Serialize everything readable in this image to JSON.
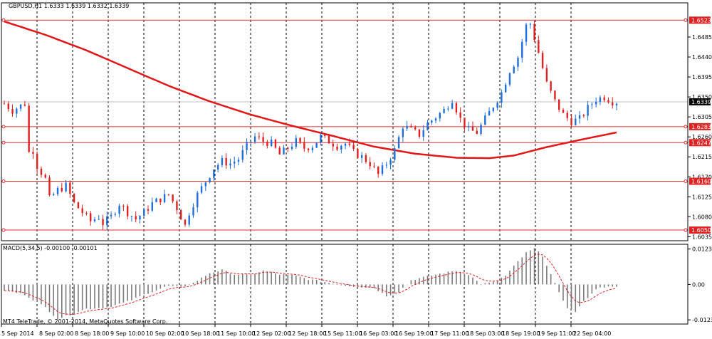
{
  "chart_data": {
    "type": "candlestick",
    "title": "GBPUSD,H1  1.6333 1.6339 1.6332 1.6339",
    "price_axis": {
      "ylim": [
        1.6026,
        1.6562
      ],
      "ticks": [
        "1.6485",
        "1.6440",
        "1.6395",
        "1.6350",
        "1.6305",
        "1.6260",
        "1.6215",
        "1.6170",
        "1.6125",
        "1.6080",
        "1.6035"
      ]
    },
    "current_price": "1.6339",
    "horizontal_levels": [
      {
        "label": "1.6523",
        "value": 1.6523
      },
      {
        "label": "1.6283",
        "value": 1.6283
      },
      {
        "label": "1.6247",
        "value": 1.6247
      },
      {
        "label": "1.6160",
        "value": 1.616
      },
      {
        "label": "1.6050",
        "value": 1.605
      }
    ],
    "time_labels": [
      "5 Sep 2014",
      "8 Sep 02:00",
      "8 Sep 18:00",
      "9 Sep 10:00",
      "10 Sep 02:00",
      "10 Sep 18:00",
      "11 Sep 10:00",
      "12 Sep 02:00",
      "12 Sep 18:00",
      "15 Sep 11:00",
      "16 Sep 03:00",
      "16 Sep 19:00",
      "17 Sep 11:00",
      "18 Sep 03:00",
      "18 Sep 19:00",
      "19 Sep 11:00",
      "22 Sep 04:00"
    ],
    "close_path": [
      [
        0,
        1.6335
      ],
      [
        2,
        1.632
      ],
      [
        4,
        1.633
      ],
      [
        5,
        1.6335
      ],
      [
        6,
        1.6225
      ],
      [
        7,
        1.623
      ],
      [
        8,
        1.6195
      ],
      [
        10,
        1.6165
      ],
      [
        11,
        1.612
      ],
      [
        13,
        1.614
      ],
      [
        15,
        1.615
      ],
      [
        17,
        1.611
      ],
      [
        19,
        1.609
      ],
      [
        21,
        1.607
      ],
      [
        23,
        1.608
      ],
      [
        24,
        1.6065
      ],
      [
        26,
        1.608
      ],
      [
        28,
        1.611
      ],
      [
        30,
        1.609
      ],
      [
        32,
        1.6075
      ],
      [
        34,
        1.609
      ],
      [
        36,
        1.611
      ],
      [
        38,
        1.612
      ],
      [
        40,
        1.613
      ],
      [
        42,
        1.61
      ],
      [
        44,
        1.606
      ],
      [
        45,
        1.609
      ],
      [
        47,
        1.613
      ],
      [
        49,
        1.616
      ],
      [
        51,
        1.619
      ],
      [
        53,
        1.6205
      ],
      [
        55,
        1.62
      ],
      [
        57,
        1.621
      ],
      [
        59,
        1.624
      ],
      [
        61,
        1.626
      ],
      [
        63,
        1.625
      ],
      [
        65,
        1.6245
      ],
      [
        67,
        1.622
      ],
      [
        69,
        1.6235
      ],
      [
        71,
        1.625
      ],
      [
        73,
        1.6235
      ],
      [
        75,
        1.624
      ],
      [
        77,
        1.626
      ],
      [
        79,
        1.625
      ],
      [
        81,
        1.624
      ],
      [
        83,
        1.6245
      ],
      [
        85,
        1.6225
      ],
      [
        87,
        1.6215
      ],
      [
        89,
        1.62
      ],
      [
        91,
        1.6175
      ],
      [
        93,
        1.62
      ],
      [
        95,
        1.623
      ],
      [
        97,
        1.6285
      ],
      [
        99,
        1.6275
      ],
      [
        101,
        1.6265
      ],
      [
        103,
        1.629
      ],
      [
        105,
        1.6305
      ],
      [
        107,
        1.632
      ],
      [
        109,
        1.6345
      ],
      [
        111,
        1.63
      ],
      [
        113,
        1.6275
      ],
      [
        115,
        1.627
      ],
      [
        117,
        1.63
      ],
      [
        119,
        1.633
      ],
      [
        121,
        1.636
      ],
      [
        123,
        1.641
      ],
      [
        125,
        1.644
      ],
      [
        127,
        1.651
      ],
      [
        128,
        1.6515
      ],
      [
        130,
        1.645
      ],
      [
        132,
        1.638
      ],
      [
        134,
        1.634
      ],
      [
        136,
        1.631
      ],
      [
        138,
        1.6295
      ],
      [
        140,
        1.63
      ],
      [
        142,
        1.6325
      ],
      [
        144,
        1.6345
      ],
      [
        146,
        1.635
      ],
      [
        148,
        1.634
      ],
      [
        149,
        1.6339
      ]
    ],
    "moving_average": [
      [
        0,
        1.652
      ],
      [
        10,
        1.649
      ],
      [
        20,
        1.6455
      ],
      [
        30,
        1.6415
      ],
      [
        40,
        1.6375
      ],
      [
        50,
        1.634
      ],
      [
        60,
        1.631
      ],
      [
        70,
        1.6285
      ],
      [
        80,
        1.6262
      ],
      [
        90,
        1.6238
      ],
      [
        100,
        1.6222
      ],
      [
        110,
        1.6213
      ],
      [
        118,
        1.6212
      ],
      [
        124,
        1.6218
      ],
      [
        132,
        1.6237
      ],
      [
        140,
        1.6253
      ],
      [
        149,
        1.627
      ]
    ],
    "macd": {
      "label": "MACD(5,34,5) -0.00100 -0.00101",
      "ylim": [
        -0.0138,
        0.014
      ],
      "ticks": [
        "0.01234",
        "0.00",
        "-0.01234"
      ],
      "histogram": [
        [
          0,
          -0.002
        ],
        [
          5,
          -0.0035
        ],
        [
          10,
          -0.008
        ],
        [
          13,
          -0.012
        ],
        [
          16,
          -0.0105
        ],
        [
          20,
          -0.0085
        ],
        [
          25,
          -0.008
        ],
        [
          30,
          -0.006
        ],
        [
          35,
          -0.003
        ],
        [
          40,
          -0.0005
        ],
        [
          43,
          -0.001
        ],
        [
          46,
          0.0005
        ],
        [
          50,
          0.004
        ],
        [
          53,
          0.005
        ],
        [
          56,
          0.0035
        ],
        [
          60,
          0.0035
        ],
        [
          63,
          0.0048
        ],
        [
          67,
          0.0035
        ],
        [
          71,
          0.003
        ],
        [
          74,
          0.0018
        ],
        [
          78,
          0.0008
        ],
        [
          82,
          -0.0002
        ],
        [
          86,
          -0.0008
        ],
        [
          90,
          -0.0012
        ],
        [
          93,
          -0.004
        ],
        [
          96,
          -0.0025
        ],
        [
          99,
          0.0015
        ],
        [
          103,
          0.0028
        ],
        [
          107,
          0.004
        ],
        [
          110,
          0.0048
        ],
        [
          113,
          0.0035
        ],
        [
          116,
          0.0
        ],
        [
          119,
          0.0008
        ],
        [
          122,
          0.003
        ],
        [
          125,
          0.008
        ],
        [
          127,
          0.011
        ],
        [
          129,
          0.0125
        ],
        [
          131,
          0.01
        ],
        [
          133,
          0.0035
        ],
        [
          135,
          -0.003
        ],
        [
          137,
          -0.008
        ],
        [
          139,
          -0.0095
        ],
        [
          141,
          -0.006
        ],
        [
          143,
          -0.003
        ],
        [
          145,
          -0.0008
        ],
        [
          149,
          -0.001
        ]
      ]
    },
    "footer": "MT4 TeleTrade, © 2001-2014, MetaQuotes Software Corp.",
    "colors": {
      "bull": "#1e6fd9",
      "bear": "#e02020",
      "ma": "#e01818",
      "level": "#e03030",
      "grid": "#000000",
      "macd_hist": "#7a7a7a",
      "macd_signal": "#e02020",
      "label_box": "#e02020",
      "current_box": "#000000"
    }
  }
}
